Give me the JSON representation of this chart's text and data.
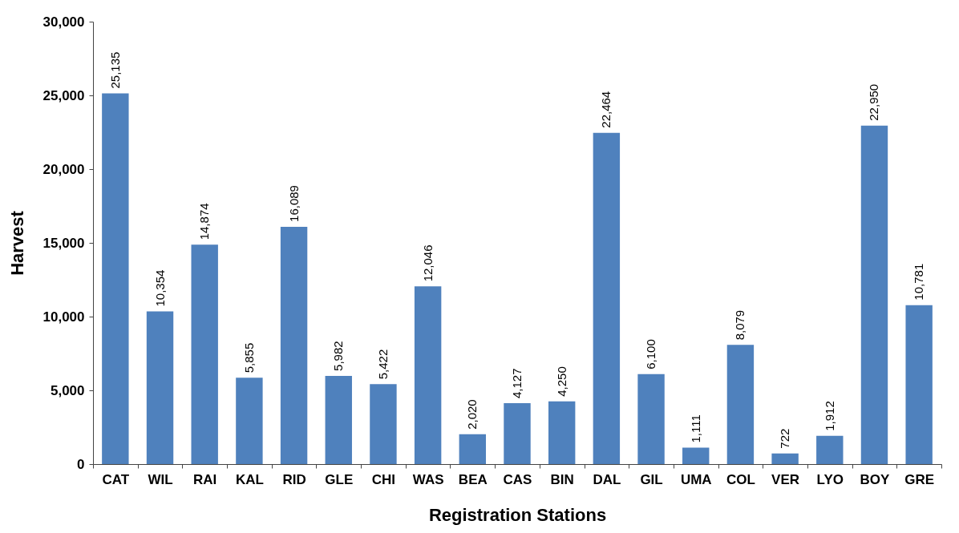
{
  "chart_data": {
    "type": "bar",
    "xlabel": "Registration Stations",
    "ylabel": "Harvest",
    "categories": [
      "CAT",
      "WIL",
      "RAI",
      "KAL",
      "RID",
      "GLE",
      "CHI",
      "WAS",
      "BEA",
      "CAS",
      "BIN",
      "DAL",
      "GIL",
      "UMA",
      "COL",
      "VER",
      "LYO",
      "BOY",
      "GRE"
    ],
    "values": [
      25135,
      10354,
      14874,
      5855,
      16089,
      5982,
      5422,
      12046,
      2020,
      4127,
      4250,
      22464,
      6100,
      1111,
      8079,
      722,
      1912,
      22950,
      10781
    ],
    "value_labels": [
      "25,135",
      "10,354",
      "14,874",
      "5,855",
      "16,089",
      "5,982",
      "5,422",
      "12,046",
      "2,020",
      "4,127",
      "4,250",
      "22,464",
      "6,100",
      "1,111",
      "8,079",
      "722",
      "1,912",
      "22,950",
      "10,781"
    ],
    "color": "#4f81bd",
    "ylim": [
      0,
      30000
    ],
    "yticks": [
      0,
      {
        "value": 5000,
        "label": "5,000"
      },
      {
        "value": 10000,
        "label": "10,000"
      },
      {
        "value": 15000,
        "label": "15,000"
      },
      {
        "value": 20000,
        "label": "20,000"
      },
      {
        "value": 25000,
        "label": "25,000"
      },
      {
        "value": 30000,
        "label": "30,000"
      }
    ],
    "grid": false
  }
}
